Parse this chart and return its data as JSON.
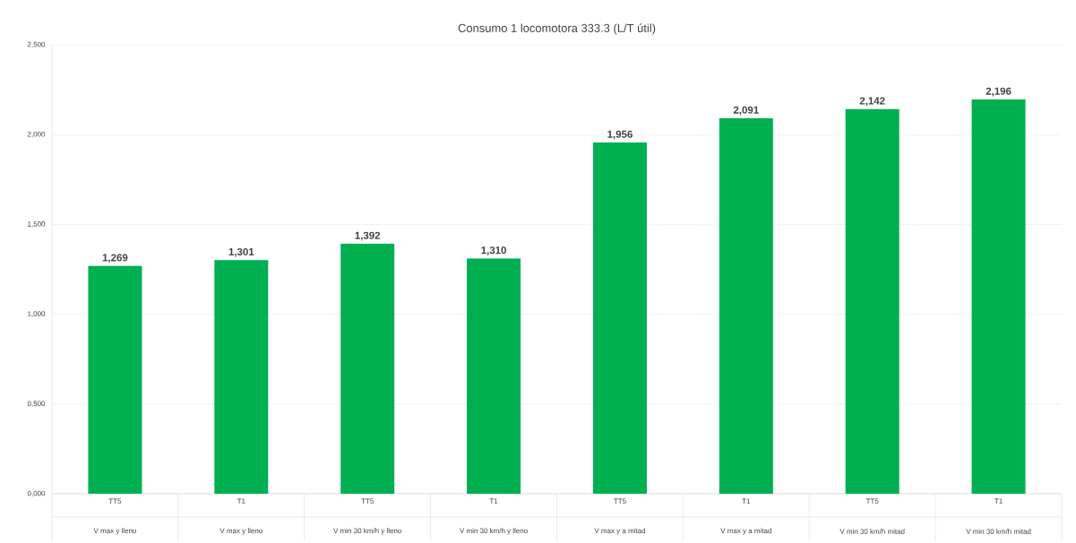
{
  "chart_data": {
    "type": "bar",
    "title": "Consumo 1 locomotora 333.3 (L/T útil)",
    "categories": [
      "TT5",
      "T1",
      "TT5",
      "T1",
      "TT5",
      "T1",
      "TT5",
      "T1"
    ],
    "values": [
      1.269,
      1.301,
      1.392,
      1.31,
      1.956,
      2.091,
      2.142,
      2.196
    ],
    "value_labels": [
      "1,269",
      "1,301",
      "1,392",
      "1,310",
      "1,956",
      "2,091",
      "2,142",
      "2,196"
    ],
    "color": "#00b050",
    "ylim": [
      0,
      2.5
    ],
    "yticks": [
      {
        "value": 0,
        "label": "0,000"
      },
      {
        "value": 0.5,
        "label": "0,500"
      },
      {
        "value": 1,
        "label": "1,000"
      },
      {
        "value": 1.5,
        "label": "1,500"
      },
      {
        "value": 2,
        "label": "2,000"
      },
      {
        "value": 2.5,
        "label": "2,500"
      }
    ],
    "grid": "y",
    "annotations": [
      "V max y lleno",
      "V max y lleno",
      "V min 30 km/h y lleno",
      "V min 30 km/h y lleno",
      "V max y a mitad",
      "V max y a mitad",
      "V min 30 km/h mitad",
      "V min 30 km/h mitad"
    ]
  }
}
